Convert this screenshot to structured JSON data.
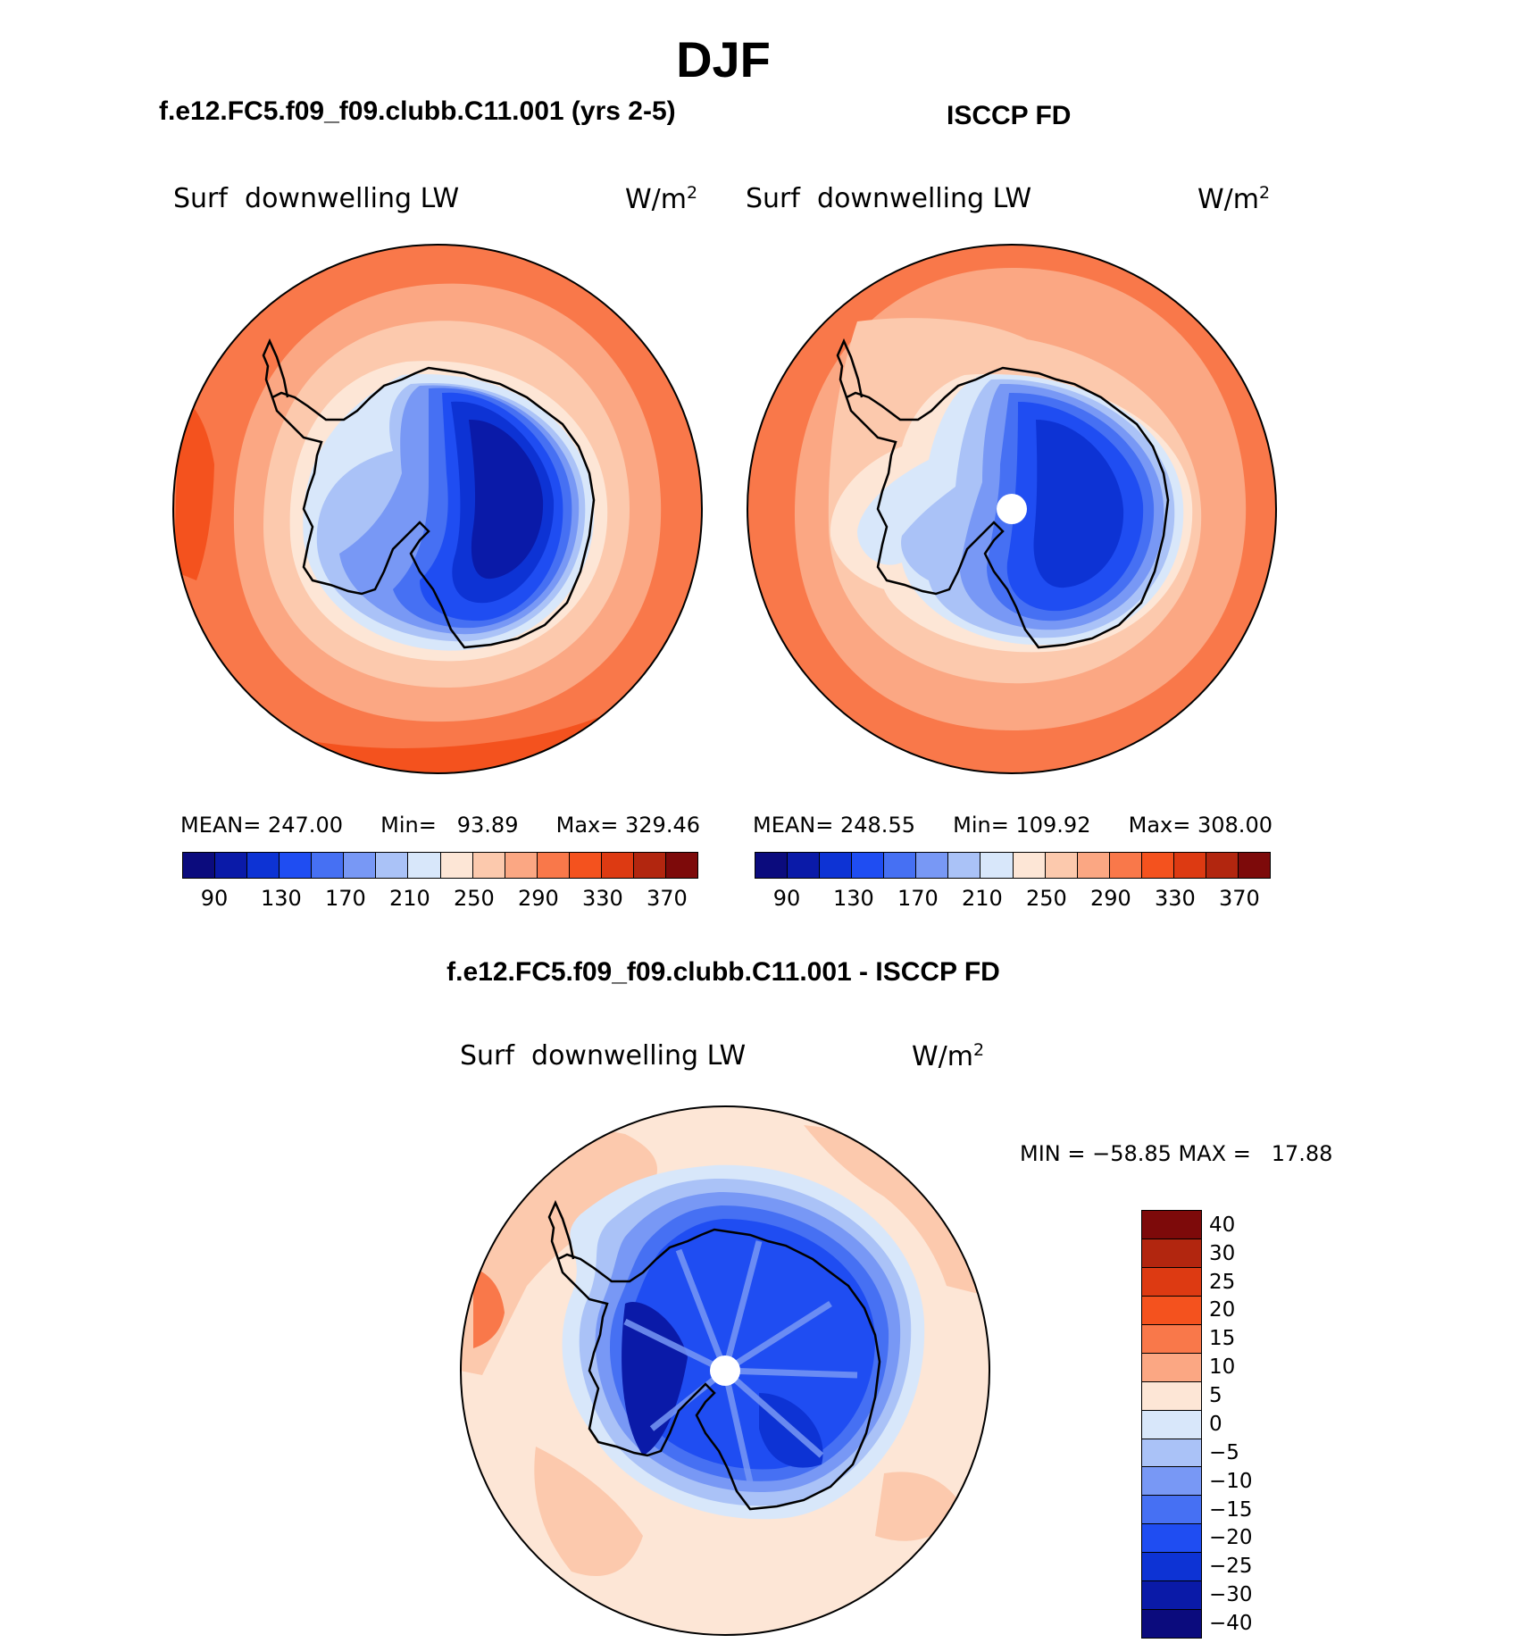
{
  "figure": {
    "season": "DJF",
    "panel_left_title": "f.e12.FC5.f09_f09.clubb.C11.001 (yrs 2-5)",
    "panel_right_title": "ISCCP FD",
    "diff_title": "f.e12.FC5.f09_f09.clubb.C11.001 - ISCCP FD"
  },
  "panels": [
    {
      "variable": "Surf  downwelling LW",
      "units": "W/m",
      "units_sup": "2",
      "stats": {
        "mean_label": "MEAN=",
        "mean": "247.00",
        "min_label": "Min=",
        "min": "93.89",
        "max_label": "Max=",
        "max": "329.46"
      }
    },
    {
      "variable": "Surf  downwelling LW",
      "units": "W/m",
      "units_sup": "2",
      "stats": {
        "mean_label": "MEAN=",
        "mean": "248.55",
        "min_label": "Min=",
        "min": "109.92",
        "max_label": "Max=",
        "max": "308.00"
      }
    }
  ],
  "diff_panel": {
    "variable": "Surf  downwelling LW",
    "units": "W/m",
    "units_sup": "2",
    "minmax_text": "MIN = −58.85 MAX =   17.88"
  },
  "abs_colorbar": {
    "colors": [
      "#0b0b7d",
      "#0a1aa8",
      "#0d33d4",
      "#1f4df2",
      "#4670f3",
      "#7898f5",
      "#aac2f7",
      "#d8e7fa",
      "#fde6d6",
      "#fcc9ad",
      "#fba783",
      "#f9784a",
      "#f4521e",
      "#dd3a12",
      "#b2260f",
      "#7d0a0a"
    ],
    "tick_labels": [
      "90",
      "130",
      "170",
      "210",
      "250",
      "290",
      "330",
      "370"
    ]
  },
  "diff_colorbar": {
    "colors": [
      "#7d0a0a",
      "#b2260f",
      "#dd3a12",
      "#f4521e",
      "#f9784a",
      "#fba783",
      "#fde6d6",
      "#d8e7fa",
      "#aac2f7",
      "#7898f5",
      "#4670f3",
      "#1f4df2",
      "#0d33d4",
      "#0a1aa8",
      "#0b0b7d"
    ],
    "tick_labels": [
      "40",
      "30",
      "25",
      "20",
      "15",
      "10",
      "5",
      "0",
      "−5",
      "−10",
      "−15",
      "−20",
      "−25",
      "−30",
      "−40"
    ]
  },
  "map_colors": {
    "ocean_far": "#f9784a",
    "ocean_mid": "#fba783",
    "ocean_near": "#fcc9ad",
    "coast_band": "#fde6d6",
    "ice_edge": "#d8e7fa",
    "ice_1": "#aac2f7",
    "ice_2": "#7898f5",
    "ice_3": "#4670f3",
    "ice_4": "#1f4df2",
    "ice_5": "#0d33d4",
    "ice_6": "#0a1aa8",
    "diff_bg": "#fde6d6",
    "diff_warm": "#fcc9ad",
    "coastline": "#000000"
  }
}
